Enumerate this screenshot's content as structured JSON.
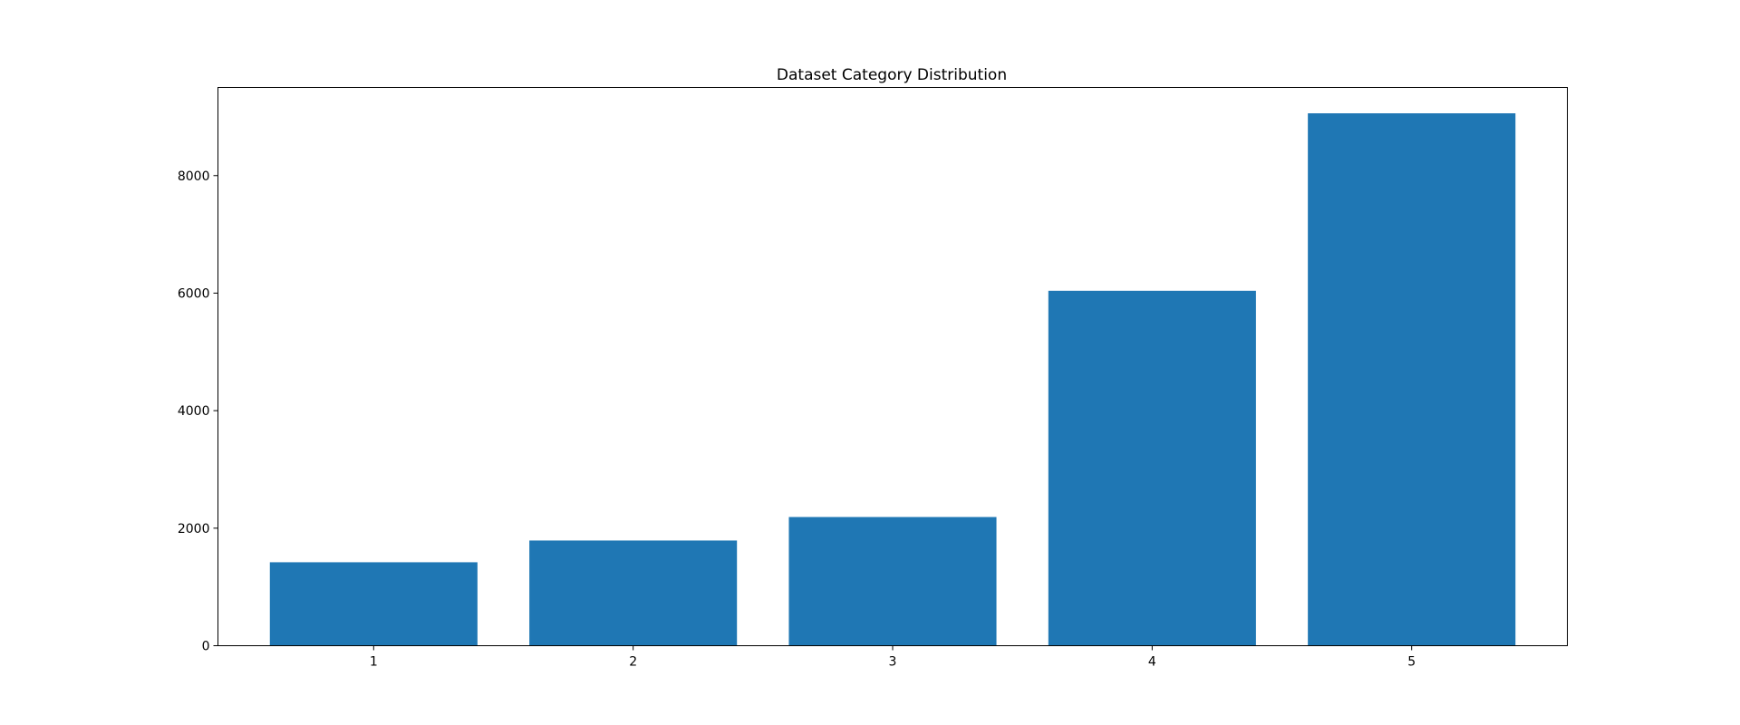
{
  "chart_data": {
    "type": "bar",
    "title": "Dataset Category Distribution",
    "xlabel": "",
    "ylabel": "",
    "categories": [
      "1",
      "2",
      "3",
      "4",
      "5"
    ],
    "values": [
      1420,
      1790,
      2190,
      6040,
      9060
    ],
    "ylim": [
      0,
      9500
    ],
    "yticks": [
      "0",
      "2000",
      "4000",
      "6000",
      "8000"
    ],
    "ytick_values": [
      0,
      2000,
      4000,
      6000,
      8000
    ],
    "grid": false,
    "legend": "none",
    "bar_color": "#1f77b4"
  }
}
